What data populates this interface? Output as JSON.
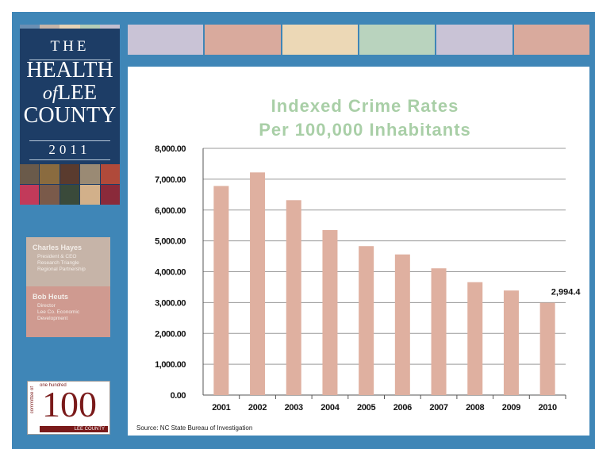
{
  "cover": {
    "word_the": "THE",
    "word_health": "HEALTH",
    "word_of": "of",
    "word_lee": "LEE",
    "word_county": "COUNTY",
    "year": "2011",
    "stripe_colors": [
      "#6b8fb3",
      "#c6b4a8",
      "#e6d3b5",
      "#b4cdb7",
      "#c2bfd0"
    ]
  },
  "presenters": [
    {
      "name": "Charles Hayes",
      "roles": [
        "President & CEO",
        "Research Triangle",
        "Regional Partnership"
      ]
    },
    {
      "name": "Bob Heuts",
      "roles": [
        "Director",
        "Lee Co. Economic",
        "Development"
      ]
    }
  ],
  "logo": {
    "small_text": "one hundred",
    "number": "100",
    "vertical_text": "committee of",
    "county_text": "LEE COUNTY"
  },
  "top_bar_colors": [
    "#c9c3d6",
    "#d9aa9d",
    "#ecd8b6",
    "#b9d3be",
    "#c9c3d6",
    "#d9aa9d"
  ],
  "chart_data": {
    "type": "bar",
    "title_lines": [
      "Indexed Crime Rates",
      "Per 100,000 Inhabitants"
    ],
    "title_color": "#a9cfa7",
    "bar_color": "#dfb0a0",
    "categories": [
      "2001",
      "2002",
      "2003",
      "2004",
      "2005",
      "2006",
      "2007",
      "2008",
      "2009",
      "2010"
    ],
    "values": [
      6780,
      7220,
      6320,
      5350,
      4830,
      4560,
      4110,
      3660,
      3390,
      2994.4
    ],
    "data_labels": [
      {
        "index": 9,
        "text": "2,994.4"
      }
    ],
    "y_ticks": [
      "0.00",
      "1,000.00",
      "2,000.00",
      "3,000.00",
      "4,000.00",
      "5,000.00",
      "6,000.00",
      "7,000.00",
      "8,000.00"
    ],
    "ylim": [
      0,
      8000
    ],
    "grid": true,
    "source": "Source:  NC State Bureau of Investigation"
  }
}
